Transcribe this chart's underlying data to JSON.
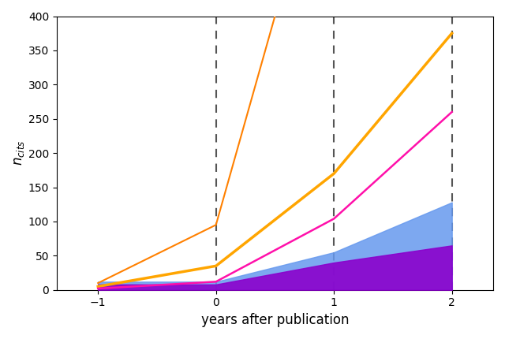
{
  "x": [
    -1,
    0,
    1,
    2
  ],
  "orange_line_x": [
    -1,
    0,
    0.5
  ],
  "orange_line_y": [
    10,
    95,
    400
  ],
  "gold_line": [
    5,
    35,
    170,
    375
  ],
  "pink_line": [
    2,
    12,
    104,
    260
  ],
  "blue_band_lower": [
    0,
    0,
    0,
    0
  ],
  "blue_band_upper": [
    12,
    12,
    55,
    128
  ],
  "purple_band_lower": [
    0,
    0,
    0,
    0
  ],
  "purple_band_upper": [
    8,
    8,
    40,
    65
  ],
  "orange_color": "#FF8000",
  "gold_color": "#FFA500",
  "pink_color": "#FF10AA",
  "blue_color": "#6699EE",
  "purple_color": "#8B00CC",
  "vline_positions": [
    0,
    1,
    2
  ],
  "ylim": [
    0,
    400
  ],
  "xlim": [
    -1.35,
    2.35
  ],
  "xlabel": "years after publication",
  "ylabel": "$n_{cits}$",
  "yticks": [
    0,
    50,
    100,
    150,
    200,
    250,
    300,
    350,
    400
  ],
  "xticks": [
    -1,
    0,
    1,
    2
  ],
  "background_color": "#ffffff"
}
